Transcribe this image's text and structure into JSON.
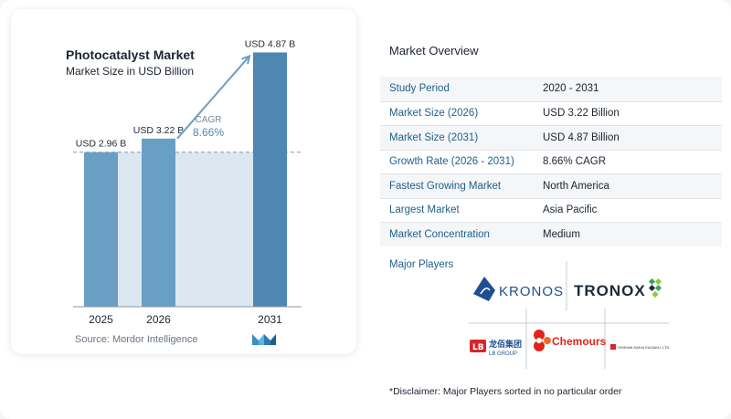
{
  "chart_data": {
    "type": "bar",
    "title": "Photocatalyst Market",
    "subtitle": "Market Size in USD Billion",
    "categories": [
      "2025",
      "2026",
      "2031"
    ],
    "values": [
      2.96,
      3.22,
      4.87
    ],
    "data_labels": [
      "USD 2.96 B",
      "USD 3.22 B",
      "USD 4.87 B"
    ],
    "ylim": [
      0,
      5.0
    ],
    "cagr_label": "CAGR",
    "cagr_value": "8.66%",
    "bar_color": "#6a9fc4",
    "bar_color_dark": "#4f87b3",
    "band_color": "#dce8f1",
    "grid": false
  },
  "source": "Source:  Mordor Intelligence",
  "overview": {
    "title": "Market Overview",
    "rows": [
      {
        "label": "Study Period",
        "value": "2020 - 2031"
      },
      {
        "label": "Market Size (2026)",
        "value": "USD 3.22 Billion"
      },
      {
        "label": "Market Size (2031)",
        "value": "USD 4.87 Billion"
      },
      {
        "label": "Growth Rate (2026 - 2031)",
        "value": "8.66% CAGR"
      },
      {
        "label": "Fastest Growing Market",
        "value": "North America"
      },
      {
        "label": "Largest Market",
        "value": "Asia Pacific"
      },
      {
        "label": "Market Concentration",
        "value": "Medium"
      }
    ]
  },
  "players": {
    "title": "Major Players",
    "logos": {
      "kronos": "KRONOS",
      "tronox": "TRONOX",
      "lb_cn": "龙佰集团",
      "lb_en": "LB GROUP",
      "chemours": "Chemours",
      "sakai": "SHIKIMA SAKAI KAGAKU, LTD."
    }
  },
  "disclaimer": "*Disclaimer: Major Players sorted in no particular order",
  "colors": {
    "accent": "#1f5f8b",
    "kronos_blue": "#1d4f91",
    "tronox_green": "#3aa35b",
    "chemours_red": "#e2231a"
  }
}
